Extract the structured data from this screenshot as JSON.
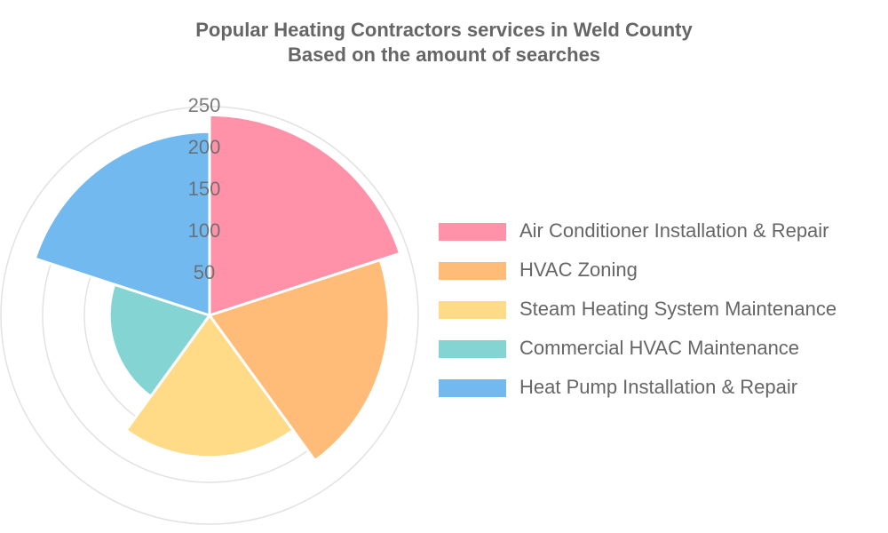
{
  "chart_data": {
    "type": "polarArea",
    "title": "Popular Heating Contractors services in Weld County",
    "subtitle": "Based on the amount of searches",
    "categories": [
      "Air Conditioner Installation & Repair",
      "HVAC Zoning",
      "Steam Heating System Maintenance",
      "Commercial HVAC Maintenance",
      "Heat Pump Installation & Repair"
    ],
    "values": [
      240,
      215,
      170,
      120,
      220
    ],
    "colors": [
      "#ff91a9",
      "#ffbb78",
      "#ffda87",
      "#84d4d4",
      "#71b9ef"
    ],
    "ylim": [
      0,
      250
    ],
    "yticks": [
      50,
      100,
      150,
      200,
      250
    ],
    "grid": true,
    "legend": "right"
  }
}
